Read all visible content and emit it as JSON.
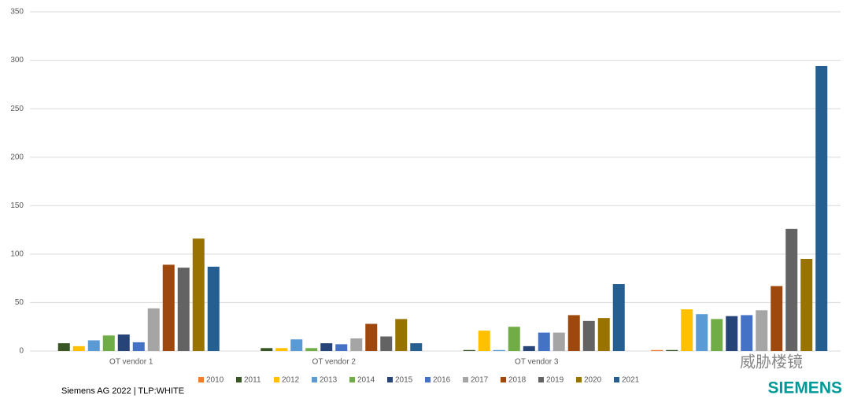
{
  "chart_data": {
    "type": "bar",
    "categories": [
      "OT vendor 1",
      "OT vendor 2",
      "OT vendor 3",
      null
    ],
    "series": [
      {
        "name": "2010",
        "color": "#ed7d31",
        "values": [
          0,
          0,
          0,
          1
        ]
      },
      {
        "name": "2011",
        "color": "#375623",
        "values": [
          8,
          3,
          1,
          1
        ]
      },
      {
        "name": "2012",
        "color": "#ffc000",
        "values": [
          5,
          3,
          21,
          43
        ]
      },
      {
        "name": "2013",
        "color": "#5b9bd5",
        "values": [
          11,
          12,
          1,
          38
        ]
      },
      {
        "name": "2014",
        "color": "#70ad47",
        "values": [
          16,
          3,
          25,
          33
        ]
      },
      {
        "name": "2015",
        "color": "#264478",
        "values": [
          17,
          8,
          5,
          36
        ]
      },
      {
        "name": "2016",
        "color": "#4472c4",
        "values": [
          9,
          7,
          19,
          37
        ]
      },
      {
        "name": "2017",
        "color": "#a5a5a5",
        "values": [
          44,
          13,
          19,
          42
        ]
      },
      {
        "name": "2018",
        "color": "#9e480e",
        "values": [
          89,
          28,
          37,
          67
        ]
      },
      {
        "name": "2019",
        "color": "#636363",
        "values": [
          86,
          15,
          31,
          126
        ]
      },
      {
        "name": "2020",
        "color": "#997300",
        "values": [
          116,
          33,
          34,
          95
        ]
      },
      {
        "name": "2021",
        "color": "#255e91",
        "values": [
          87,
          8,
          69,
          294
        ]
      }
    ],
    "ylim": [
      0,
      350
    ],
    "yticks": [
      0,
      50,
      100,
      150,
      200,
      250,
      300,
      350
    ],
    "grid": true,
    "legend": "bottom"
  },
  "footer": "Siemens AG 2022 | TLP:WHITE",
  "logo": "SIEMENS",
  "watermark": "威胁楼镜"
}
